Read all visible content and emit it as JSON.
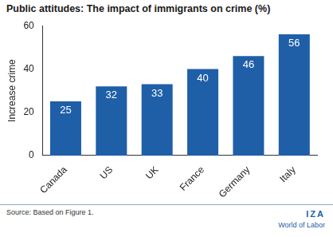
{
  "chart_data": {
    "type": "bar",
    "title": "Public attitudes: The impact of immigrants on crime (%)",
    "y_label": "Increase crime",
    "categories": [
      "Canada",
      "US",
      "UK",
      "France",
      "Germany",
      "Italy"
    ],
    "values": [
      25,
      32,
      33,
      40,
      46,
      56
    ],
    "color": "#1f5fa8",
    "ylim": [
      0,
      60
    ],
    "yticks": [
      0,
      20,
      40,
      60
    ],
    "grid": false,
    "data_labels": true,
    "annotations": [
      "Source: Based on Figure 1.",
      "IZA",
      "World of Labor"
    ]
  }
}
